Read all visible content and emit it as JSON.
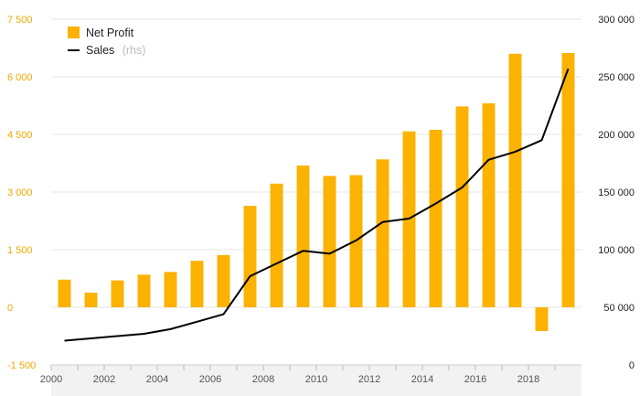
{
  "chart_data": {
    "type": "bar",
    "x": [
      "2000",
      "2001",
      "2002",
      "2003",
      "2004",
      "2005",
      "2006",
      "2007",
      "2008",
      "2009",
      "2010",
      "2011",
      "2012",
      "2013",
      "2014",
      "2015",
      "2016",
      "2017",
      "2018",
      "2019"
    ],
    "x_tick_labels": [
      "2000",
      "2002",
      "2004",
      "2006",
      "2008",
      "2010",
      "2012",
      "2014",
      "2016",
      "2018"
    ],
    "series": [
      {
        "name": "Net Profit",
        "type": "bar",
        "axis": "left",
        "color": "#fbb200",
        "values": [
          720,
          380,
          700,
          850,
          920,
          1210,
          1360,
          2640,
          3220,
          3690,
          3420,
          3440,
          3850,
          4580,
          4620,
          5230,
          5310,
          6600,
          -620,
          6620
        ]
      },
      {
        "name": "Sales",
        "legend_suffix": "(rhs)",
        "type": "line",
        "axis": "right",
        "color": "#000000",
        "values": [
          21000,
          23000,
          25000,
          27000,
          31000,
          37500,
          44000,
          77000,
          88000,
          99000,
          96500,
          108000,
          124000,
          127000,
          140000,
          154000,
          178000,
          185000,
          195000,
          257000
        ]
      }
    ],
    "left_axis": {
      "ylim": [
        -1500,
        7500
      ],
      "ticks": [
        -1500,
        0,
        1500,
        3000,
        4500,
        6000,
        7500
      ],
      "tick_labels": [
        "-1 500",
        "0",
        "1 500",
        "3 000",
        "4 500",
        "6 000",
        "7 500"
      ],
      "color": "#f0a800"
    },
    "right_axis": {
      "ylim": [
        0,
        300000
      ],
      "ticks": [
        0,
        50000,
        100000,
        150000,
        200000,
        250000,
        300000
      ],
      "tick_labels": [
        "0",
        "50 000",
        "100 000",
        "150 000",
        "200 000",
        "250 000",
        "300 000"
      ],
      "color": "#222222"
    },
    "grid": true,
    "legend_position": "top-left",
    "title": "",
    "xlabel": "",
    "ylabel": ""
  }
}
